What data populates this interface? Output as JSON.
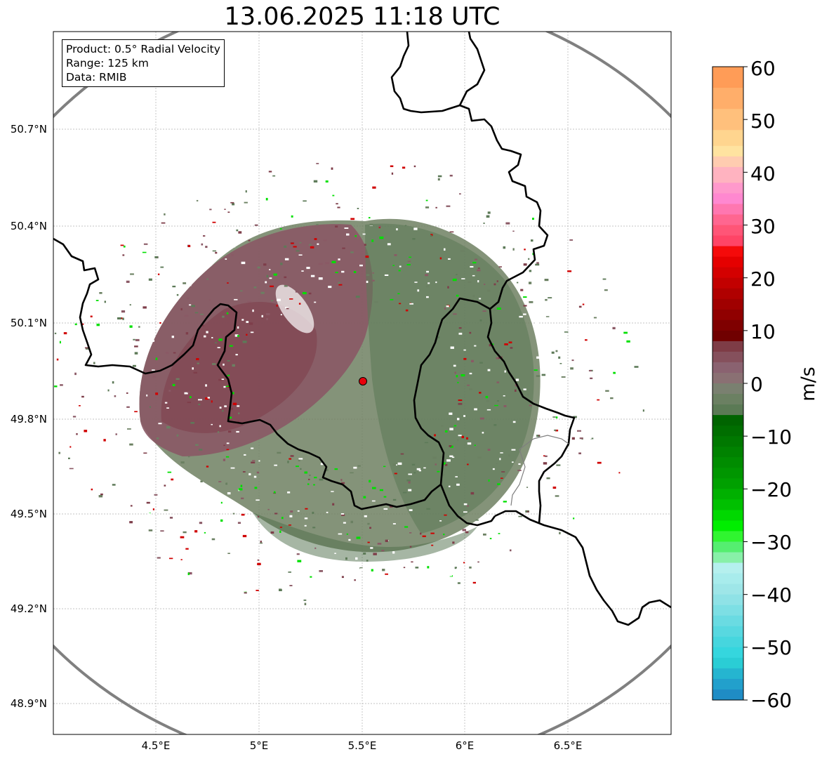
{
  "title": "13.06.2025 11:18 UTC",
  "info": {
    "product": "Product: 0.5° Radial Velocity",
    "range": "Range: 125 km",
    "data": "Data: RMIB"
  },
  "map": {
    "lat_ticks": [
      "50.7°N",
      "50.4°N",
      "50.1°N",
      "49.8°N",
      "49.5°N",
      "49.2°N",
      "48.9°N"
    ],
    "lon_ticks": [
      "4.5°E",
      "5°E",
      "5.5°E",
      "6°E",
      "6.5°E"
    ],
    "radar_site_color": "#e8000b",
    "range_ring_color": "#808080"
  },
  "colorbar": {
    "unit": "m/s",
    "tick_labels": [
      "60",
      "50",
      "40",
      "30",
      "20",
      "10",
      "0",
      "−10",
      "−20",
      "−30",
      "−40",
      "−50",
      "−60"
    ],
    "range": [
      -60,
      60
    ]
  }
}
